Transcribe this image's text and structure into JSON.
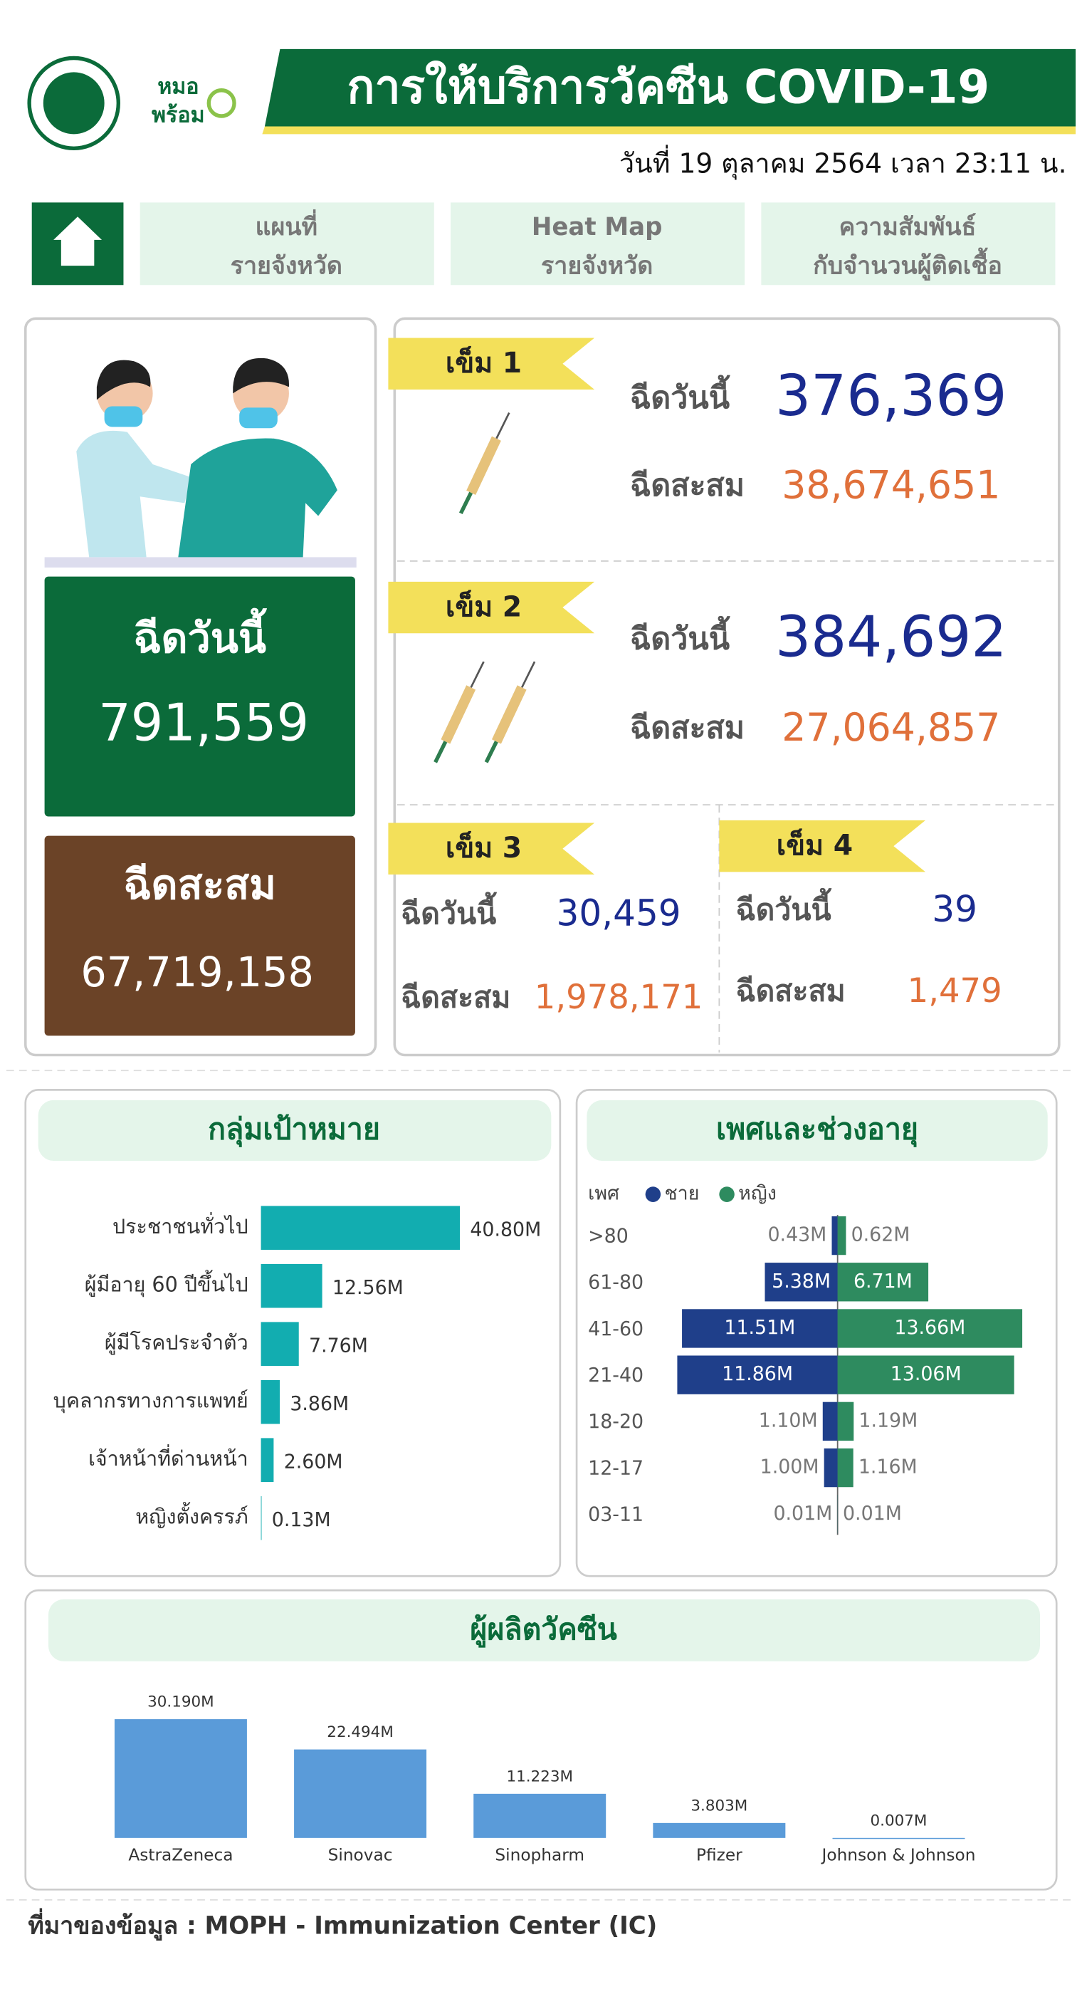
{
  "header": {
    "logo_top": "หมอ",
    "logo_bottom": "พร้อม",
    "title": "การให้บริการวัคซีน COVID-19",
    "date": "วันที่ 19 ตุลาคม 2564 เวลา 23:11 น."
  },
  "nav": [
    {
      "line1": "แผนที่",
      "line2": "รายจังหวัด"
    },
    {
      "line1": "Heat Map",
      "line2": "รายจังหวัด"
    },
    {
      "line1": "ความสัมพันธ์",
      "line2": "กับจำนวนผู้ติดเชื้อ"
    }
  ],
  "summary": {
    "today_label": "ฉีดวันนี้",
    "today": "791,559",
    "total_label": "ฉีดสะสม",
    "total": "67,719,158"
  },
  "doses": [
    {
      "label": "เข็ม 1",
      "today_label": "ฉีดวันนี้",
      "today": "376,369",
      "total_label": "ฉีดสะสม",
      "total": "38,674,651"
    },
    {
      "label": "เข็ม 2",
      "today_label": "ฉีดวันนี้",
      "today": "384,692",
      "total_label": "ฉีดสะสม",
      "total": "27,064,857"
    },
    {
      "label": "เข็ม 3",
      "today_label": "ฉีดวันนี้",
      "today": "30,459",
      "total_label": "ฉีดสะสม",
      "total": "1,978,171"
    },
    {
      "label": "เข็ม 4",
      "today_label": "ฉีดวันนี้",
      "today": "39",
      "total_label": "ฉีดสะสม",
      "total": "1,479"
    }
  ],
  "chart_data": [
    {
      "type": "hbar",
      "title": "กลุ่มเป้าหมาย",
      "color": "#12adb0",
      "categories": [
        "ประชาชนทั่วไป",
        "ผู้มีอายุ 60 ปีขึ้นไป",
        "ผู้มีโรคประจำตัว",
        "บุคลากรทางการแพทย์",
        "เจ้าหน้าที่ด่านหน้า",
        "หญิงตั้งครรภ์"
      ],
      "values": [
        40.8,
        12.56,
        7.76,
        3.86,
        2.6,
        0.13
      ],
      "value_labels": [
        "40.80M",
        "12.56M",
        "7.76M",
        "3.86M",
        "2.60M",
        "0.13M"
      ]
    },
    {
      "type": "pyramid",
      "title": "เพศและช่วงอายุ",
      "legend_title": "เพศ",
      "categories": [
        ">80",
        "61-80",
        "41-60",
        "21-40",
        "18-20",
        "12-17",
        "03-11"
      ],
      "series": [
        {
          "name": "ชาย",
          "color": "#1f3f8a",
          "values": [
            0.43,
            5.38,
            11.51,
            11.86,
            1.1,
            1.0,
            0.01
          ],
          "value_labels": [
            "0.43M",
            "5.38M",
            "11.51M",
            "11.86M",
            "1.10M",
            "1.00M",
            "0.01M"
          ]
        },
        {
          "name": "หญิง",
          "color": "#2e8b5f",
          "values": [
            0.62,
            6.71,
            13.66,
            13.06,
            1.19,
            1.16,
            0.01
          ],
          "value_labels": [
            "0.62M",
            "6.71M",
            "13.66M",
            "13.06M",
            "1.19M",
            "1.16M",
            "0.01M"
          ]
        }
      ]
    },
    {
      "type": "bar",
      "title": "ผู้ผลิตวัคซีน",
      "color": "#5a9bd9",
      "categories": [
        "AstraZeneca",
        "Sinovac",
        "Sinopharm",
        "Pfizer",
        "Johnson & Johnson"
      ],
      "values": [
        30.19,
        22.494,
        11.223,
        3.803,
        0.007
      ],
      "value_labels": [
        "30.190M",
        "22.494M",
        "11.223M",
        "3.803M",
        "0.007M"
      ]
    }
  ],
  "source": "ที่มาของข้อมูล : MOPH - Immunization Center (IC)"
}
